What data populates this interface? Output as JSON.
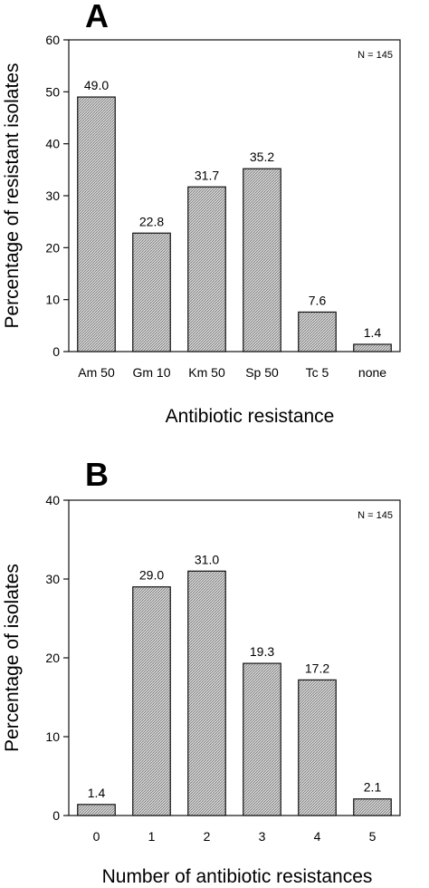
{
  "chart_data": [
    {
      "type": "bar",
      "panel_label": "A",
      "annotation": "N = 145",
      "xlabel": "Antibiotic resistance",
      "ylabel": "Percentage of resistant isolates",
      "categories": [
        "Am 50",
        "Gm 10",
        "Km 50",
        "Sp 50",
        "Tc 5",
        "none"
      ],
      "values": [
        49.0,
        22.8,
        31.7,
        35.2,
        7.6,
        1.4
      ],
      "value_labels": [
        "49.0",
        "22.8",
        "31.7",
        "35.2",
        "7.6",
        "1.4"
      ],
      "ylim": [
        0,
        60
      ],
      "yticks": [
        0,
        10,
        20,
        30,
        40,
        50,
        60
      ],
      "grid": false,
      "bar_fill": "#c8c8c8"
    },
    {
      "type": "bar",
      "panel_label": "B",
      "annotation": "N = 145",
      "xlabel": "Number of antibiotic resistances",
      "ylabel": "Percentage of isolates",
      "categories": [
        "0",
        "1",
        "2",
        "3",
        "4",
        "5"
      ],
      "values": [
        1.4,
        29.0,
        31.0,
        19.3,
        17.2,
        2.1
      ],
      "value_labels": [
        "1.4",
        "29.0",
        "31.0",
        "19.3",
        "17.2",
        "2.1"
      ],
      "ylim": [
        0,
        40
      ],
      "yticks": [
        0,
        10,
        20,
        30,
        40
      ],
      "grid": false,
      "bar_fill": "#c8c8c8"
    }
  ]
}
